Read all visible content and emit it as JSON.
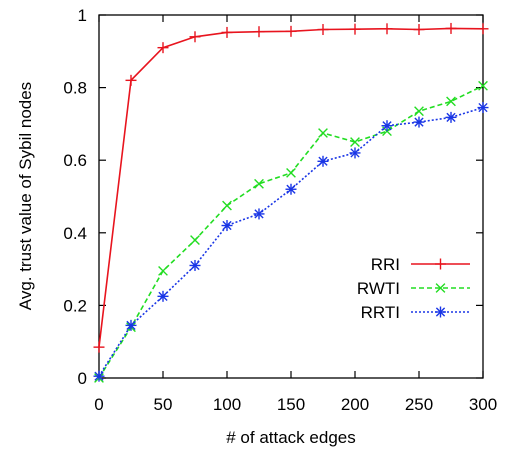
{
  "chart_data": {
    "type": "line",
    "title": "",
    "xlabel": "# of attack edges",
    "ylabel": "Avg. trust value of Sybil nodes",
    "xlim": [
      0,
      300
    ],
    "ylim": [
      0,
      1
    ],
    "x_ticks": [
      "0",
      "50",
      "100",
      "150",
      "200",
      "250",
      "300"
    ],
    "y_ticks": [
      "0",
      "0.2",
      "0.4",
      "0.6",
      "0.8",
      "1"
    ],
    "grid": false,
    "legend_position": "right-middle",
    "x": [
      0,
      25,
      50,
      75,
      100,
      125,
      150,
      175,
      200,
      225,
      250,
      275,
      300
    ],
    "series": [
      {
        "name": "RRI",
        "color": "#e8141e",
        "marker": "plus",
        "line_style": "solid",
        "values": [
          0.085,
          0.82,
          0.91,
          0.94,
          0.952,
          0.954,
          0.955,
          0.96,
          0.961,
          0.962,
          0.96,
          0.963,
          0.962
        ]
      },
      {
        "name": "RWTI",
        "color": "#22dd22",
        "marker": "x",
        "line_style": "dashed",
        "values": [
          0.0,
          0.14,
          0.295,
          0.38,
          0.475,
          0.535,
          0.565,
          0.675,
          0.65,
          0.68,
          0.735,
          0.762,
          0.805
        ]
      },
      {
        "name": "RRTI",
        "color": "#1a36e6",
        "marker": "star",
        "line_style": "dotted",
        "values": [
          0.005,
          0.145,
          0.225,
          0.31,
          0.42,
          0.452,
          0.52,
          0.597,
          0.62,
          0.695,
          0.705,
          0.718,
          0.745
        ]
      }
    ]
  }
}
